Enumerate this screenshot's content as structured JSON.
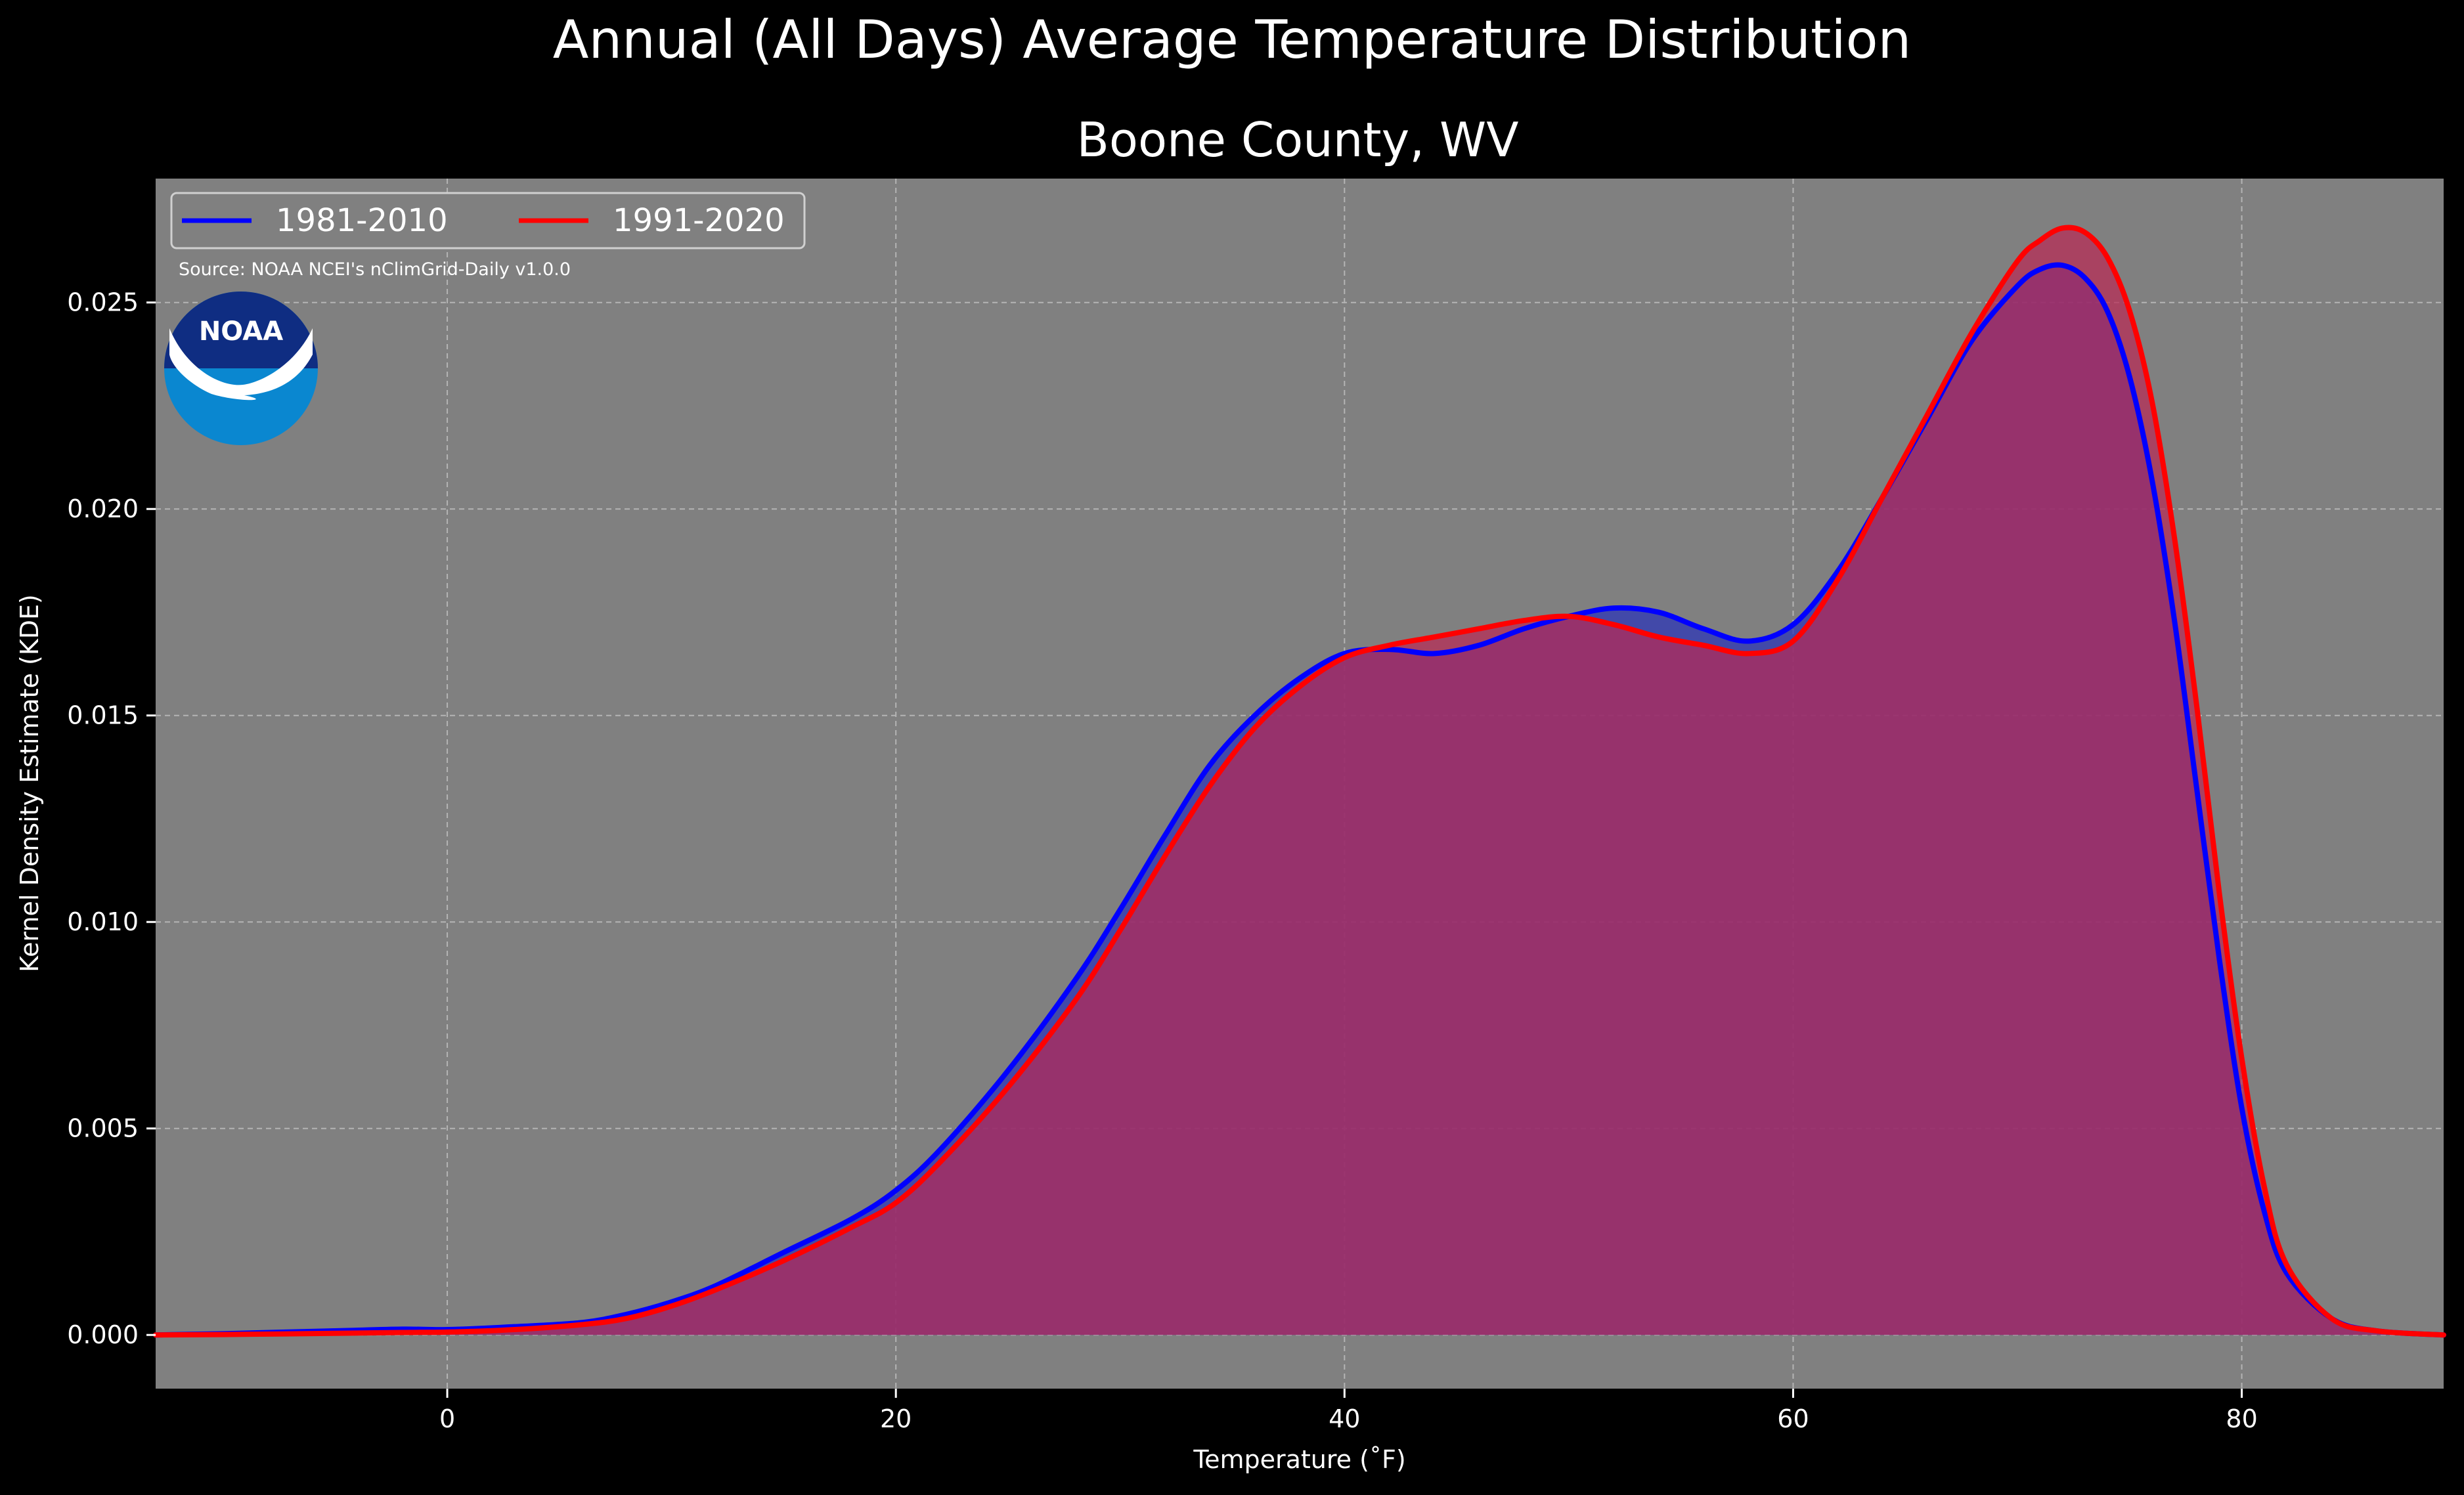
{
  "chart_data": {
    "type": "area",
    "title": "Annual (All Days) Average Temperature Distribution",
    "subtitle": "Boone County, WV",
    "xlabel": "Temperature ($^\\circ$F)",
    "xlabel_display": "Temperature (˚F)",
    "ylabel": "Kernel Density Estimate (KDE)",
    "xlim": [
      -13,
      89
    ],
    "ylim": [
      -0.0013,
      0.028
    ],
    "xticks": [
      0,
      20,
      40,
      60,
      80
    ],
    "xtick_labels": [
      "0",
      "20",
      "40",
      "60",
      "80"
    ],
    "yticks": [
      0.0,
      0.005,
      0.01,
      0.015,
      0.02,
      0.025
    ],
    "ytick_labels": [
      "0.000",
      "0.005",
      "0.010",
      "0.015",
      "0.020",
      "0.025"
    ],
    "grid": true,
    "legend_position": "top-left",
    "source_note": "Source: NOAA NCEI's nClimGrid-Daily v1.0.0",
    "logo_text": "NOAA",
    "background_color": "#000000",
    "plot_background_color": "#808080",
    "series": [
      {
        "name": "1981-2010",
        "color": "#0000ff",
        "fill_color": "#2a33b8",
        "x": [
          -13,
          -10,
          -5,
          -2,
          0,
          3,
          6,
          8,
          10,
          12,
          15,
          18,
          20,
          22,
          25,
          28,
          30,
          32,
          34,
          36,
          38,
          40,
          42,
          44,
          46,
          48,
          50,
          52,
          54,
          56,
          58,
          60,
          62,
          64,
          66,
          68,
          70,
          71,
          72,
          73,
          74,
          75,
          76,
          77,
          78,
          79,
          80,
          81,
          82,
          84,
          86,
          89
        ],
        "values": [
          0.0,
          3e-05,
          0.0001,
          0.00014,
          0.00013,
          0.0002,
          0.0003,
          0.0005,
          0.0008,
          0.0012,
          0.002,
          0.0028,
          0.0035,
          0.0045,
          0.0064,
          0.0086,
          0.0103,
          0.0121,
          0.0138,
          0.015,
          0.0159,
          0.0165,
          0.0166,
          0.0165,
          0.0167,
          0.0171,
          0.0174,
          0.0176,
          0.0175,
          0.0171,
          0.0168,
          0.0172,
          0.0185,
          0.0203,
          0.0222,
          0.0241,
          0.0254,
          0.0258,
          0.0259,
          0.0256,
          0.0248,
          0.0232,
          0.0207,
          0.0173,
          0.0132,
          0.0091,
          0.0055,
          0.003,
          0.0015,
          0.0004,
          0.0001,
          0.0
        ]
      },
      {
        "name": "1991-2020",
        "color": "#ff0000",
        "fill_color": "#b82a55",
        "x": [
          -13,
          -10,
          -5,
          -2,
          0,
          3,
          6,
          8,
          10,
          12,
          15,
          18,
          20,
          22,
          25,
          28,
          30,
          32,
          34,
          36,
          38,
          40,
          42,
          44,
          46,
          48,
          50,
          52,
          54,
          56,
          58,
          60,
          62,
          64,
          66,
          68,
          70,
          71,
          72,
          73,
          74,
          75,
          76,
          77,
          78,
          79,
          80,
          81,
          82,
          84,
          86,
          89
        ],
        "values": [
          0.0,
          1e-05,
          4e-05,
          6e-05,
          7e-05,
          0.00013,
          0.00025,
          0.0004,
          0.0007,
          0.0011,
          0.0018,
          0.0026,
          0.0032,
          0.0042,
          0.006,
          0.0081,
          0.0098,
          0.0116,
          0.0133,
          0.0147,
          0.0157,
          0.0164,
          0.0167,
          0.0169,
          0.0171,
          0.0173,
          0.0174,
          0.0172,
          0.0169,
          0.0167,
          0.0165,
          0.0168,
          0.0183,
          0.0203,
          0.0223,
          0.0243,
          0.026,
          0.0265,
          0.0268,
          0.0267,
          0.0261,
          0.0248,
          0.0226,
          0.0193,
          0.0152,
          0.0107,
          0.0067,
          0.0036,
          0.0017,
          0.0004,
          0.0001,
          0.0
        ]
      }
    ]
  }
}
